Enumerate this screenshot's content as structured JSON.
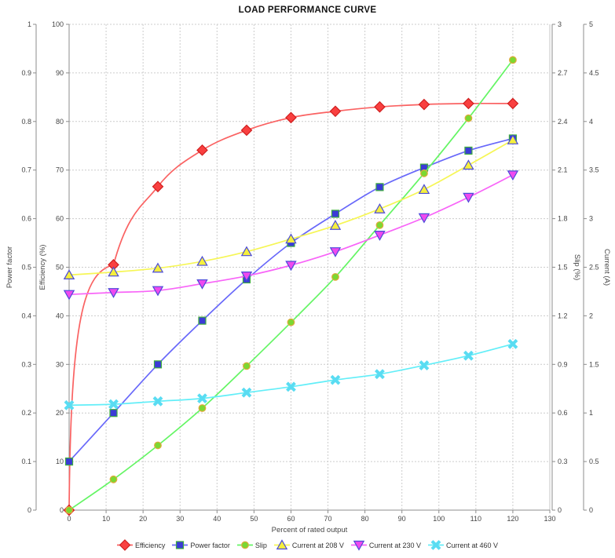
{
  "title": "LOAD PERFORMANCE CURVE",
  "chart_data": {
    "type": "line",
    "title": "LOAD PERFORMANCE CURVE",
    "xlabel": "Percent of rated output",
    "xlim": [
      0,
      130
    ],
    "x_tick_labels": [
      "0",
      "10",
      "20",
      "30",
      "40",
      "50",
      "60",
      "70",
      "80",
      "90",
      "100",
      "110",
      "120",
      "130"
    ],
    "grid": true,
    "legend_position": "bottom",
    "axes": [
      {
        "id": "power_factor",
        "label": "Power factor",
        "side": "left-outer",
        "lim": [
          0,
          1
        ],
        "ticks": [
          "0",
          "0.1",
          "0.2",
          "0.3",
          "0.4",
          "0.5",
          "0.6",
          "0.7",
          "0.8",
          "0.9",
          "1"
        ]
      },
      {
        "id": "efficiency",
        "label": "Efficiency (%)",
        "side": "left-inner",
        "lim": [
          0,
          100
        ],
        "ticks": [
          "0",
          "10",
          "20",
          "30",
          "40",
          "50",
          "60",
          "70",
          "80",
          "90",
          "100"
        ]
      },
      {
        "id": "slip",
        "label": "Slip (%)",
        "side": "right-inner",
        "lim": [
          0,
          3
        ],
        "ticks": [
          "0",
          "0.3",
          "0.6",
          "0.9",
          "1.2",
          "1.5",
          "1.8",
          "2.1",
          "2.4",
          "2.7",
          "3"
        ]
      },
      {
        "id": "current",
        "label": "Current (A)",
        "side": "right-outer",
        "lim": [
          0,
          5
        ],
        "ticks": [
          "0",
          "0.5",
          "1",
          "1.5",
          "2",
          "2.5",
          "3",
          "3.5",
          "4",
          "4.5",
          "5"
        ]
      }
    ],
    "x": [
      0,
      12,
      24,
      36,
      48,
      60,
      72,
      84,
      96,
      108,
      120
    ],
    "series": [
      {
        "name": "Efficiency",
        "axis": "efficiency",
        "marker": "diamond",
        "line_color": "#fa6262",
        "marker_fill": "#f94040",
        "marker_stroke": "#d01f1f",
        "values": [
          0,
          50.5,
          66.6,
          74.1,
          78.2,
          80.8,
          82.1,
          83.0,
          83.5,
          83.7,
          83.7
        ]
      },
      {
        "name": "Power factor",
        "axis": "power_factor",
        "marker": "square",
        "line_color": "#6868fa",
        "marker_fill": "#3b3bd6",
        "marker_stroke": "#3fae3f",
        "values": [
          0.1,
          0.2,
          0.3,
          0.39,
          0.475,
          0.55,
          0.61,
          0.665,
          0.705,
          0.74,
          0.765
        ]
      },
      {
        "name": "Slip",
        "axis": "slip",
        "marker": "circle",
        "line_color": "#64f564",
        "marker_fill": "#7bd832",
        "marker_stroke": "#e2a93b",
        "values": [
          0,
          0.19,
          0.4,
          0.63,
          0.89,
          1.16,
          1.44,
          1.76,
          2.08,
          2.42,
          2.78
        ]
      },
      {
        "name": "Current at 208 V",
        "axis": "current",
        "marker": "triangle-up",
        "line_color": "#f6f655",
        "marker_fill": "#f5ef3d",
        "marker_stroke": "#4b4bd9",
        "values": [
          2.42,
          2.45,
          2.49,
          2.56,
          2.66,
          2.79,
          2.93,
          3.1,
          3.3,
          3.55,
          3.81
        ]
      },
      {
        "name": "Current at 230 V",
        "axis": "current",
        "marker": "triangle-down",
        "line_color": "#f864f8",
        "marker_fill": "#ef49ef",
        "marker_stroke": "#4b4bd9",
        "values": [
          2.22,
          2.24,
          2.26,
          2.33,
          2.41,
          2.52,
          2.66,
          2.83,
          3.01,
          3.22,
          3.45
        ]
      },
      {
        "name": "Current at 460 V",
        "axis": "current",
        "marker": "x",
        "line_color": "#62eef8",
        "marker_fill": "#59dcf2",
        "marker_stroke": "#59dcf2",
        "values": [
          1.08,
          1.09,
          1.12,
          1.15,
          1.21,
          1.27,
          1.34,
          1.4,
          1.49,
          1.59,
          1.71
        ]
      }
    ],
    "style": {
      "grid_color": "#cccccc",
      "axis_color": "#8c8c8c",
      "border_color": "#c4c4c4",
      "tick_label_color": "#464646"
    }
  }
}
